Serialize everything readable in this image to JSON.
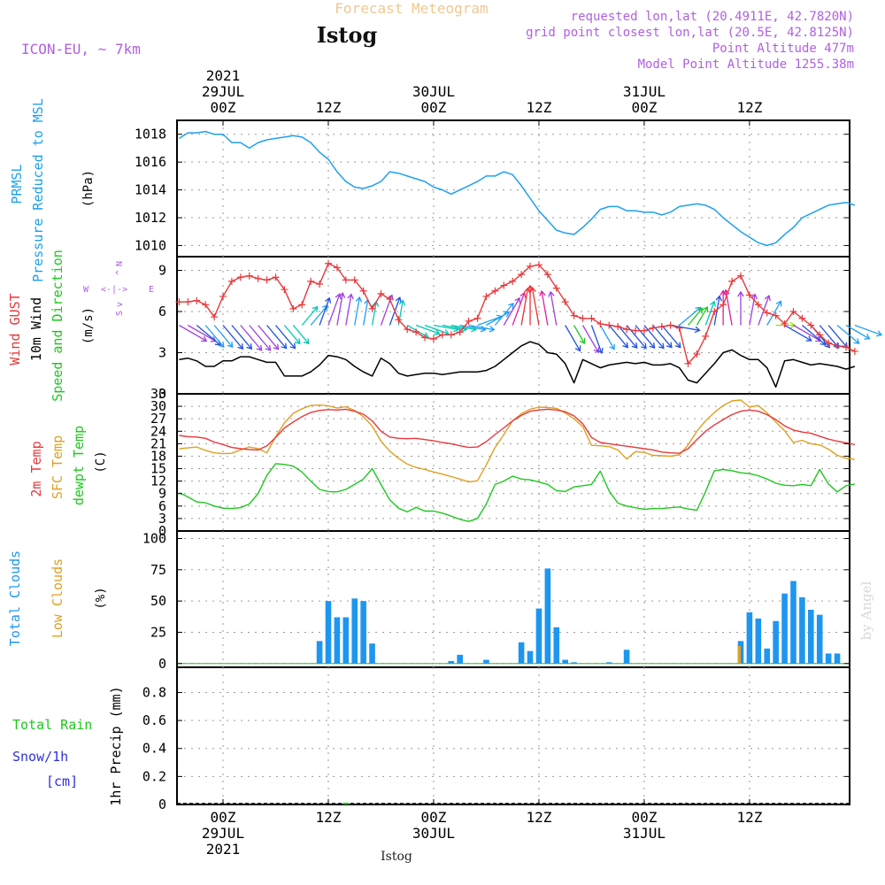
{
  "header": {
    "title": "Forecast Meteogram",
    "location": "Istog",
    "model": "ICON-EU, ~ 7km",
    "requested": "requested lon,lat (20.4911E, 42.7820N)",
    "grid_point": "grid point closest lon,lat (20.5E, 42.8125N)",
    "point_altitude": "Point Altitude 477m",
    "model_altitude": "Model Point Altitude 1255.38m",
    "credit": "by Angel",
    "footer_location": "Istog"
  },
  "time_axis": {
    "top_labels": [
      {
        "hours": 0,
        "lines": [
          "2021",
          "29JUL",
          "00Z"
        ]
      },
      {
        "hours": 12,
        "lines": [
          "12Z"
        ]
      },
      {
        "hours": 24,
        "lines": [
          "30JUL",
          "00Z"
        ]
      },
      {
        "hours": 36,
        "lines": [
          "12Z"
        ]
      },
      {
        "hours": 48,
        "lines": [
          "31JUL",
          "00Z"
        ]
      },
      {
        "hours": 60,
        "lines": [
          "12Z"
        ]
      }
    ],
    "bottom_labels": [
      {
        "hours": 0,
        "lines": [
          "00Z",
          "29JUL",
          "2021"
        ]
      },
      {
        "hours": 12,
        "lines": [
          "12Z"
        ]
      },
      {
        "hours": 24,
        "lines": [
          "00Z",
          "30JUL"
        ]
      },
      {
        "hours": 36,
        "lines": [
          "12Z"
        ]
      },
      {
        "hours": 48,
        "lines": [
          "00Z",
          "31JUL"
        ]
      },
      {
        "hours": 60,
        "lines": [
          "12Z"
        ]
      }
    ]
  },
  "panels": {
    "pressure": {
      "label_lines": [
        "PRMSL",
        "Pressure Reduced to MSL"
      ],
      "unit": "(hPa)"
    },
    "wind": {
      "gust_label": "Wind GUST",
      "wind_label_lines": [
        "10m Wind",
        "Speed and Direction"
      ],
      "unit": "(m/s)",
      "compass": {
        "n": "N",
        "s": "S",
        "w": "W",
        "e": "E",
        "horizontal": "<-|->",
        "vertical_up": "^",
        "vertical_down": "v",
        "center": "|"
      }
    },
    "temperature": {
      "label_lines": [
        "2m Temp",
        "SFC Temp",
        "dewpt Temp"
      ],
      "unit": "(C)"
    },
    "clouds": {
      "label_lines": [
        "Total Clouds",
        "Low Clouds"
      ],
      "unit": "(%)"
    },
    "precip": {
      "rain_label": "Total  Rain",
      "snow_label_lines": [
        "Snow/1h",
        "[cm]"
      ],
      "axis_label": "1hr Precip (mm)"
    }
  },
  "colors": {
    "pressure": "#1ea0f0",
    "gust": "#e8383b",
    "wind_speed": "#000000",
    "temp_2m": "#e8383b",
    "temp_sfc": "#e0a020",
    "dewpoint": "#1ec81e",
    "total_clouds": "#1e96f0",
    "low_clouds": "#e0a020",
    "rain": "#1ec81e",
    "snow": "#3030e0",
    "header_title": "#f0c890",
    "meta_text": "#b060e0"
  },
  "chart_data": [
    {
      "type": "line",
      "name": "PRMSL",
      "unit": "hPa",
      "ylabel": "Pressure Reduced to MSL",
      "ylim": [
        1009.2,
        1019
      ],
      "yticks": [
        1010,
        1012,
        1014,
        1016,
        1018
      ],
      "x_hours": [
        -5,
        -4,
        -3,
        -2,
        -1,
        0,
        1,
        2,
        3,
        4,
        5,
        6,
        7,
        8,
        9,
        10,
        11,
        12,
        13,
        14,
        15,
        16,
        17,
        18,
        19,
        20,
        21,
        22,
        23,
        24,
        25,
        26,
        27,
        28,
        29,
        30,
        31,
        32,
        33,
        34,
        35,
        36,
        37,
        38,
        39,
        40,
        41,
        42,
        43,
        44,
        45,
        46,
        47,
        48,
        49,
        50,
        51,
        52,
        53,
        54,
        55,
        56,
        57,
        58,
        59,
        60,
        61,
        62,
        63,
        64,
        65,
        66,
        67,
        68,
        69,
        70,
        71,
        72
      ],
      "series": [
        {
          "values": [
            1017.7,
            1018.1,
            1018.1,
            1018.2,
            1018.0,
            1018.0,
            1017.4,
            1017.4,
            1017.0,
            1017.4,
            1017.6,
            1017.7,
            1017.8,
            1017.9,
            1017.8,
            1017.4,
            1016.7,
            1016.2,
            1015.3,
            1014.6,
            1014.2,
            1014.1,
            1014.3,
            1014.6,
            1015.3,
            1015.2,
            1015.0,
            1014.8,
            1014.6,
            1014.2,
            1014.0,
            1013.7,
            1014.0,
            1014.3,
            1014.6,
            1015.0,
            1015.0,
            1015.3,
            1015.1,
            1014.3,
            1013.4,
            1012.5,
            1011.8,
            1011.1,
            1010.9,
            1010.8,
            1011.3,
            1011.9,
            1012.6,
            1012.8,
            1012.8,
            1012.5,
            1012.5,
            1012.4,
            1012.4,
            1012.2,
            1012.4,
            1012.8,
            1012.9,
            1013.0,
            1012.9,
            1012.6,
            1012.0,
            1011.5,
            1011.0,
            1010.6,
            1010.2,
            1010.0,
            1010.2,
            1010.8,
            1011.3,
            1012.0,
            1012.3,
            1012.6,
            1012.9,
            1013.0,
            1013.1,
            1012.9
          ]
        }
      ]
    },
    {
      "type": "line",
      "name": "Wind",
      "unit": "m/s",
      "ylim": [
        0,
        10
      ],
      "yticks": [
        0,
        3,
        6,
        9
      ],
      "x_hours": [
        -5,
        -4,
        -3,
        -2,
        -1,
        0,
        1,
        2,
        3,
        4,
        5,
        6,
        7,
        8,
        9,
        10,
        11,
        12,
        13,
        14,
        15,
        16,
        17,
        18,
        19,
        20,
        21,
        22,
        23,
        24,
        25,
        26,
        27,
        28,
        29,
        30,
        31,
        32,
        33,
        34,
        35,
        36,
        37,
        38,
        39,
        40,
        41,
        42,
        43,
        44,
        45,
        46,
        47,
        48,
        49,
        50,
        51,
        52,
        53,
        54,
        55,
        56,
        57,
        58,
        59,
        60,
        61,
        62,
        63,
        64,
        65,
        66,
        67,
        68,
        69,
        70,
        71,
        72
      ],
      "series": [
        {
          "name": "Wind GUST",
          "values": [
            6.7,
            6.7,
            6.8,
            6.5,
            5.6,
            7.1,
            8.2,
            8.5,
            8.6,
            8.4,
            8.3,
            8.5,
            7.6,
            6.2,
            6.5,
            8.2,
            8.0,
            9.5,
            9.2,
            8.3,
            8.3,
            7.5,
            6.2,
            7.3,
            6.9,
            5.4,
            4.7,
            4.5,
            4.1,
            4.0,
            4.3,
            4.3,
            4.5,
            5.3,
            5.5,
            7.1,
            7.5,
            7.9,
            8.2,
            8.7,
            9.3,
            9.4,
            8.7,
            7.7,
            6.7,
            5.7,
            5.5,
            5.5,
            5.1,
            5.0,
            4.9,
            4.7,
            4.6,
            4.6,
            4.8,
            4.9,
            5.0,
            4.8,
            2.2,
            2.9,
            4.2,
            6.0,
            6.5,
            8.2,
            8.6,
            7.2,
            6.5,
            5.9,
            5.7,
            5.1,
            6.0,
            5.5,
            5.0,
            4.3,
            3.7,
            3.5,
            3.4,
            3.1
          ]
        },
        {
          "name": "10m Wind Speed",
          "values": [
            2.5,
            2.6,
            2.4,
            2.0,
            2.0,
            2.4,
            2.4,
            2.7,
            2.7,
            2.5,
            2.3,
            2.3,
            1.3,
            1.3,
            1.3,
            1.6,
            2.1,
            2.8,
            2.7,
            2.5,
            2.0,
            1.6,
            1.3,
            2.6,
            2.2,
            1.5,
            1.3,
            1.4,
            1.5,
            1.5,
            1.4,
            1.5,
            1.6,
            1.6,
            1.6,
            1.7,
            2.0,
            2.5,
            3.0,
            3.5,
            3.8,
            3.6,
            3.0,
            2.9,
            2.2,
            0.8,
            2.5,
            2.2,
            1.9,
            2.1,
            2.2,
            2.3,
            2.2,
            2.3,
            2.1,
            2.1,
            2.2,
            1.9,
            1.0,
            0.8,
            1.5,
            2.2,
            3.0,
            3.2,
            2.8,
            2.5,
            2.5,
            1.9,
            0.5,
            2.4,
            2.5,
            2.3,
            2.1,
            2.2,
            2.1,
            2.0,
            1.8,
            2.0
          ]
        }
      ],
      "wind_barbs_direction_deg": [
        300,
        300,
        310,
        320,
        320,
        320,
        320,
        320,
        320,
        320,
        320,
        320,
        320,
        320,
        220,
        220,
        200,
        200,
        190,
        190,
        190,
        190,
        190,
        200,
        200,
        190,
        300,
        290,
        290,
        280,
        280,
        280,
        280,
        280,
        250,
        240,
        220,
        210,
        200,
        190,
        180,
        170,
        170,
        170,
        330,
        330,
        330,
        340,
        330,
        320,
        320,
        320,
        320,
        320,
        320,
        320,
        280,
        230,
        220,
        210,
        200,
        190,
        180,
        170,
        180,
        190,
        200,
        210,
        270,
        300,
        300,
        310,
        320,
        320,
        320,
        310,
        300,
        290
      ]
    },
    {
      "type": "line",
      "name": "Temperature",
      "unit": "C",
      "ylim": [
        0,
        33
      ],
      "yticks": [
        0,
        3,
        6,
        9,
        12,
        15,
        18,
        21,
        24,
        27,
        30,
        33
      ],
      "x_hours": [
        -5,
        -4,
        -3,
        -2,
        -1,
        0,
        1,
        2,
        3,
        4,
        5,
        6,
        7,
        8,
        9,
        10,
        11,
        12,
        13,
        14,
        15,
        16,
        17,
        18,
        19,
        20,
        21,
        22,
        23,
        24,
        25,
        26,
        27,
        28,
        29,
        30,
        31,
        32,
        33,
        34,
        35,
        36,
        37,
        38,
        39,
        40,
        41,
        42,
        43,
        44,
        45,
        46,
        47,
        48,
        49,
        50,
        51,
        52,
        53,
        54,
        55,
        56,
        57,
        58,
        59,
        60,
        61,
        62,
        63,
        64,
        65,
        66,
        67,
        68,
        69,
        70,
        71,
        72
      ],
      "series": [
        {
          "name": "2m Temp",
          "values": [
            23.0,
            22.7,
            22.6,
            22.3,
            21.4,
            20.8,
            20.1,
            19.8,
            19.6,
            19.5,
            20.5,
            22.5,
            24.8,
            26.2,
            27.5,
            28.5,
            29.0,
            29.2,
            29.1,
            29.3,
            28.8,
            28.1,
            26.5,
            24.0,
            22.6,
            22.3,
            22.2,
            22.3,
            22.0,
            21.7,
            21.3,
            21.0,
            20.5,
            20.1,
            20.2,
            21.5,
            23.2,
            24.8,
            26.5,
            27.8,
            28.8,
            29.1,
            29.3,
            29.1,
            28.7,
            27.7,
            25.8,
            22.5,
            21.3,
            21.0,
            20.7,
            20.4,
            20.1,
            19.8,
            19.5,
            19.0,
            18.8,
            18.7,
            19.8,
            22.0,
            24.0,
            25.5,
            26.8,
            28.0,
            28.8,
            29.1,
            28.8,
            28.0,
            26.8,
            25.3,
            24.3,
            23.8,
            23.5,
            22.8,
            22.1,
            21.6,
            21.2,
            20.8
          ]
        },
        {
          "name": "SFC Temp",
          "values": [
            19.8,
            20.0,
            20.2,
            19.4,
            18.8,
            18.6,
            18.7,
            19.5,
            20.2,
            19.8,
            18.8,
            22.7,
            26.0,
            28.3,
            29.4,
            30.2,
            30.3,
            30.1,
            29.6,
            29.9,
            29.0,
            27.5,
            25.2,
            21.6,
            19.2,
            17.5,
            16.1,
            15.3,
            14.8,
            14.2,
            13.7,
            13.1,
            12.5,
            11.8,
            12.1,
            15.9,
            20.1,
            23.2,
            26.5,
            28.2,
            29.3,
            29.8,
            29.7,
            29.5,
            28.4,
            27.0,
            25.1,
            20.6,
            20.5,
            20.3,
            19.5,
            17.3,
            19.1,
            18.9,
            18.2,
            18.1,
            18.0,
            18.3,
            20.7,
            24.0,
            26.5,
            28.5,
            30.2,
            31.3,
            31.5,
            29.8,
            30.2,
            28.4,
            26.2,
            24.1,
            21.3,
            21.8,
            21.0,
            20.7,
            19.7,
            18.2,
            17.5,
            17.2
          ]
        },
        {
          "name": "dewpt Temp",
          "values": [
            9.2,
            8.2,
            7.0,
            6.8,
            6.0,
            5.5,
            5.4,
            5.6,
            6.5,
            9.0,
            13.4,
            16.2,
            16.0,
            15.6,
            14.2,
            12.0,
            10.0,
            9.5,
            9.4,
            10.0,
            11.2,
            12.5,
            15.0,
            11.2,
            7.5,
            5.5,
            4.6,
            5.7,
            4.8,
            4.8,
            4.3,
            3.6,
            2.8,
            2.3,
            3.0,
            6.5,
            11.2,
            12.0,
            13.2,
            12.5,
            12.3,
            11.8,
            11.2,
            9.7,
            9.5,
            10.6,
            10.9,
            11.2,
            14.4,
            9.6,
            6.7,
            6.0,
            5.6,
            5.2,
            5.4,
            5.4,
            5.6,
            5.8,
            5.3,
            5.0,
            9.5,
            14.5,
            14.8,
            14.5,
            14.0,
            13.8,
            13.3,
            12.5,
            11.5,
            11.0,
            10.9,
            11.2,
            10.9,
            14.8,
            11.3,
            9.4,
            10.9,
            11.3
          ]
        }
      ]
    },
    {
      "type": "bar",
      "name": "Clouds",
      "unit": "%",
      "ylim": [
        -3,
        106
      ],
      "yticks": [
        0,
        25,
        50,
        75,
        100
      ],
      "x_hours": [
        11,
        12,
        13,
        14,
        15,
        16,
        17,
        26,
        27,
        30,
        34,
        35,
        36,
        37,
        38,
        39,
        40,
        44,
        46,
        59,
        60,
        61,
        62,
        63,
        64,
        65,
        66,
        67,
        68,
        69,
        70,
        71
      ],
      "series": [
        {
          "name": "Total Clouds",
          "values": [
            18,
            50,
            37,
            37,
            52,
            50,
            16,
            2,
            7,
            3,
            17,
            10,
            44,
            76,
            29,
            3,
            1,
            1,
            11,
            18,
            41,
            36,
            12,
            34,
            56,
            66,
            53,
            43,
            39,
            8,
            8,
            0
          ]
        },
        {
          "name": "Low Clouds",
          "values": [
            0,
            0,
            0,
            0,
            0,
            0,
            0,
            0,
            0,
            0,
            0,
            0,
            0,
            0,
            0,
            0,
            0,
            0,
            0,
            14,
            0,
            0,
            0,
            0,
            0,
            0,
            0,
            0,
            0,
            0,
            0,
            0
          ]
        }
      ]
    },
    {
      "type": "bar",
      "name": "Precipitation",
      "unit": "mm",
      "ylabel": "1hr Precip (mm)",
      "ylim": [
        0,
        0.98
      ],
      "yticks": [
        0,
        0.2,
        0.4,
        0.6,
        0.8
      ],
      "x_hours": [
        14
      ],
      "series": [
        {
          "name": "Total Rain",
          "values": [
            0.005
          ]
        },
        {
          "name": "Snow/1h",
          "values": [
            0
          ]
        }
      ]
    }
  ]
}
